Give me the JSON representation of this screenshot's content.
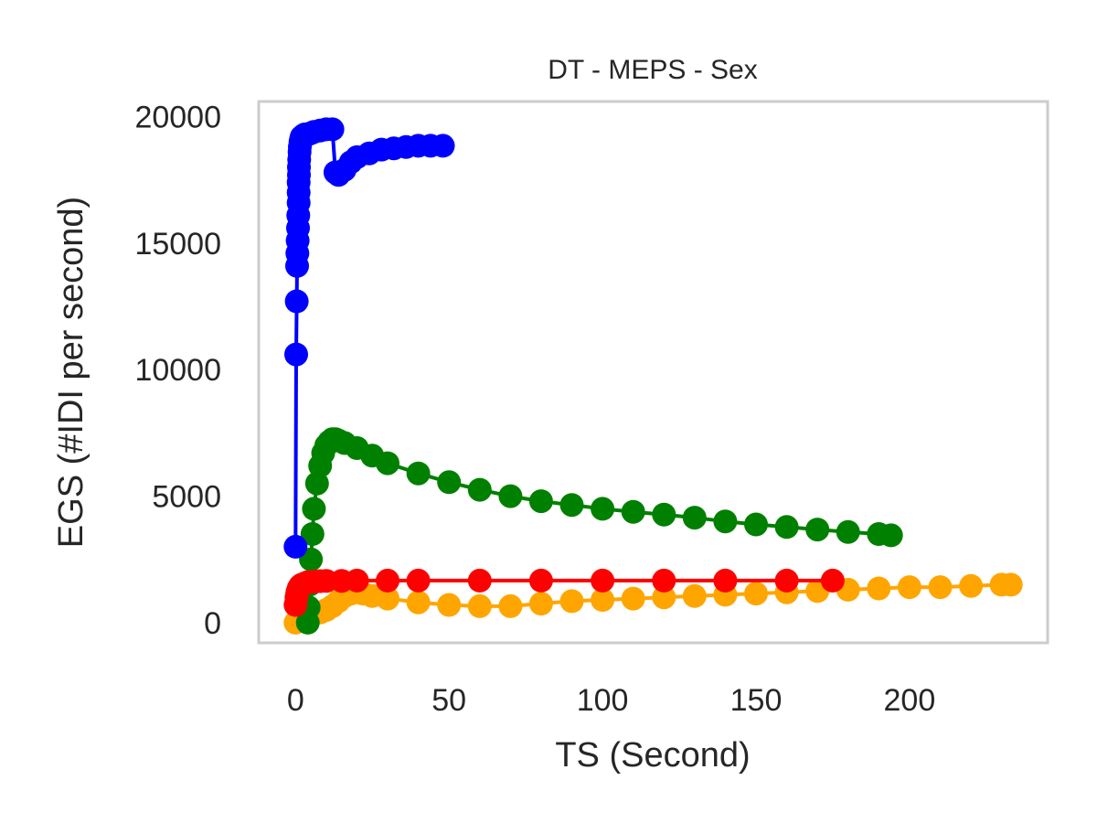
{
  "chart_data": {
    "type": "line",
    "title": "DT - MEPS - Sex",
    "xlabel": "TS (Second)",
    "ylabel": "EGS (#IDI  per second)",
    "xlim": [
      -12,
      245
    ],
    "ylim": [
      -800,
      20600
    ],
    "xticks": [
      0,
      50,
      100,
      150,
      200
    ],
    "yticks": [
      0,
      5000,
      10000,
      15000,
      20000
    ],
    "grid": false,
    "series": [
      {
        "color": "#ffa500",
        "x": [
          0,
          2,
          4,
          6,
          8,
          10,
          12,
          14,
          16,
          18,
          20,
          22,
          25,
          30,
          40,
          50,
          60,
          70,
          80,
          90,
          100,
          110,
          120,
          130,
          140,
          150,
          160,
          170,
          180,
          190,
          200,
          210,
          220,
          230,
          233
        ],
        "y": [
          0,
          150,
          250,
          350,
          400,
          500,
          650,
          850,
          1050,
          1150,
          1200,
          1150,
          1050,
          950,
          800,
          700,
          650,
          650,
          750,
          850,
          900,
          950,
          1000,
          1050,
          1100,
          1150,
          1200,
          1250,
          1300,
          1350,
          1400,
          1400,
          1450,
          1500,
          1500
        ]
      },
      {
        "color": "#008000",
        "x": [
          4,
          4.3,
          4.6,
          5,
          5.5,
          6,
          7,
          8,
          9,
          10,
          11,
          12,
          13,
          14,
          16,
          20,
          25,
          30,
          40,
          50,
          60,
          70,
          80,
          90,
          100,
          110,
          120,
          130,
          140,
          150,
          160,
          170,
          180,
          190,
          194
        ],
        "y": [
          0,
          600,
          1500,
          2500,
          3500,
          4500,
          5500,
          6200,
          6700,
          7000,
          7150,
          7250,
          7250,
          7200,
          7100,
          6900,
          6600,
          6300,
          5900,
          5550,
          5250,
          5000,
          4800,
          4650,
          4500,
          4380,
          4270,
          4150,
          4000,
          3880,
          3780,
          3680,
          3580,
          3500,
          3450
        ]
      },
      {
        "color": "#0000ff",
        "x": [
          0,
          0.2,
          0.4,
          0.5,
          0.6,
          0.7,
          0.8,
          0.9,
          1,
          1,
          1,
          1.1,
          1.1,
          1.2,
          1.3,
          1.4,
          1.6,
          1.8,
          2,
          2.5,
          3,
          4,
          5,
          6,
          8,
          10,
          12,
          13,
          14,
          16,
          18,
          20,
          24,
          28,
          32,
          36,
          40,
          44,
          48
        ],
        "y": [
          3000,
          10600,
          12700,
          14100,
          14600,
          15100,
          15600,
          16100,
          16600,
          17000,
          17400,
          17700,
          18000,
          18300,
          18600,
          18800,
          19000,
          19100,
          19200,
          19250,
          19300,
          19300,
          19350,
          19400,
          19450,
          19500,
          19500,
          17800,
          17700,
          17900,
          18200,
          18400,
          18550,
          18700,
          18750,
          18800,
          18850,
          18850,
          18850
        ]
      },
      {
        "color": "#ff0000",
        "x": [
          0,
          0.3,
          0.6,
          1,
          1.5,
          2,
          3,
          4,
          6,
          8,
          10,
          15,
          20,
          30,
          40,
          60,
          80,
          100,
          120,
          140,
          160,
          175
        ],
        "y": [
          700,
          1000,
          1200,
          1350,
          1450,
          1500,
          1550,
          1600,
          1620,
          1640,
          1650,
          1650,
          1660,
          1660,
          1660,
          1660,
          1660,
          1660,
          1660,
          1660,
          1660,
          1660
        ]
      }
    ]
  }
}
